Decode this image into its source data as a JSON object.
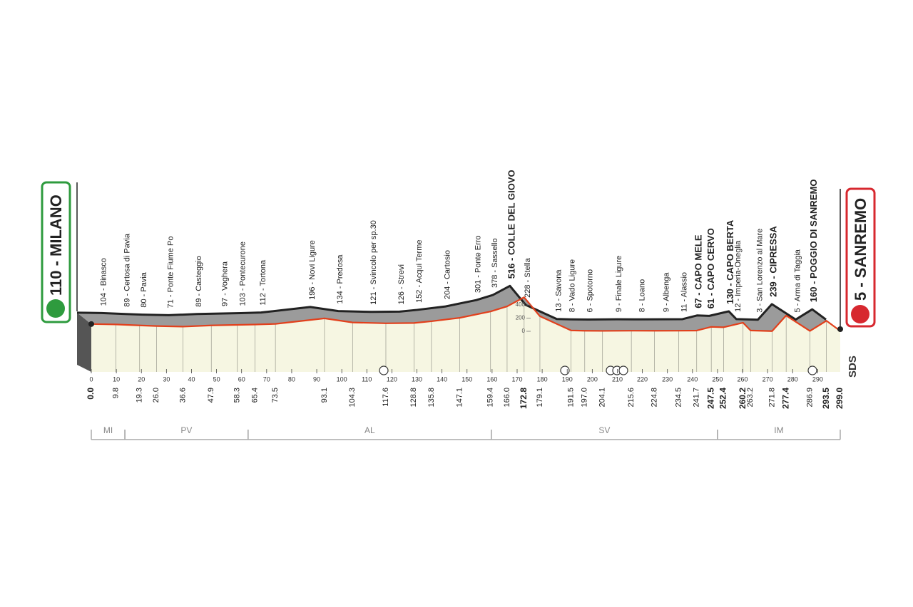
{
  "chart_data": {
    "type": "area",
    "start_label": "110 - MILANO",
    "end_label": "5 - SANREMO",
    "logo": "SDS",
    "x": [
      0.0,
      9.8,
      19.3,
      26.0,
      36.6,
      47.9,
      58.3,
      65.4,
      73.5,
      93.1,
      104.3,
      117.6,
      128.8,
      135.8,
      147.1,
      159.4,
      166.0,
      172.8,
      179.1,
      191.5,
      197.0,
      204.1,
      215.6,
      224.8,
      234.5,
      241.7,
      247.5,
      252.4,
      260.2,
      263.2,
      271.8,
      277.4,
      286.9,
      293.5,
      299.0
    ],
    "x_labels": [
      "0.0",
      "9.8",
      "19.3",
      "26.0",
      "36.6",
      "47.9",
      "58.3",
      "65.4",
      "73.5",
      "93.1",
      "104.3",
      "117.6",
      "128.8",
      "135.8",
      "147.1",
      "159.4",
      "166.0",
      "172.8",
      "179.1",
      "191.5",
      "197.0",
      "204.1",
      "215.6",
      "224.8",
      "234.5",
      "241.7",
      "247.5",
      "252.4",
      "260.2",
      "263.2",
      "271.8",
      "277.4",
      "286.9",
      "293.5",
      "299.0"
    ],
    "values": [
      110,
      104,
      89,
      80,
      71,
      89,
      97,
      103,
      112,
      196,
      134,
      121,
      126,
      152,
      204,
      301,
      378,
      516,
      228,
      13,
      8,
      6,
      9,
      8,
      9,
      11,
      67,
      61,
      130,
      12,
      3,
      239,
      5,
      160,
      5
    ],
    "point_labels": [
      "110 - MILANO",
      "104 - Binasco",
      "89 - Certosa di Pavia",
      "80 - Pavia",
      "71 - Ponte Fiume Po",
      "89 - Casteggio",
      "97 - Voghera",
      "103 - Pontecurone",
      "112 - Tortona",
      "196 - Novi Ligure",
      "134 - Predosa",
      "121 - Svincolo per sp.30",
      "126 - Strevi",
      "152 - Acqui Terme",
      "204 - Cartosio",
      "301 - Ponte Erro",
      "378 - Sassello",
      "516 - COLLE DEL GIOVO",
      "228 - Stella",
      "13 - Savona",
      "8 - Vado Ligure",
      "6 - Spotorno",
      "9 - Finale Ligure",
      "8 - Loano",
      "9 - Albenga",
      "11 - Alassio",
      "67 - CAPO MELE",
      "61 - CAPO CERVO",
      "130 - CAPO BERTA",
      "12 - Imperia-Oneglia",
      "3 - San Lorenzo al Mare",
      "239 - CIPRESSA",
      "5 - Arma di Taggia",
      "160 - POGGIO DI SANREMO",
      "5 - SANREMO"
    ],
    "highlight": [
      0,
      17,
      26,
      27,
      28,
      31,
      33,
      34
    ],
    "xlim": [
      0,
      299
    ],
    "xticks": [
      0,
      10,
      20,
      30,
      40,
      50,
      60,
      70,
      80,
      90,
      100,
      110,
      120,
      130,
      140,
      150,
      160,
      170,
      180,
      190,
      200,
      210,
      220,
      230,
      240,
      250,
      260,
      270,
      280,
      290
    ],
    "ylim": [
      0,
      400
    ],
    "yticks": [
      0,
      200,
      400
    ],
    "regions": [
      {
        "name": "MI",
        "start": 0,
        "end": 13.4
      },
      {
        "name": "PV",
        "start": 13.4,
        "end": 62.6
      },
      {
        "name": "AL",
        "start": 62.6,
        "end": 159.7
      },
      {
        "name": "SV",
        "start": 159.7,
        "end": 250
      },
      {
        "name": "IM",
        "start": 250,
        "end": 299
      }
    ],
    "line_color": "#e2401c",
    "face_color": "#9b9b9b",
    "fill_color": "#f6f6e2"
  }
}
